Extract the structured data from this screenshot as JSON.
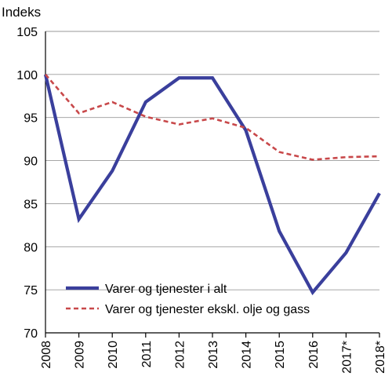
{
  "chart_data": {
    "type": "line",
    "ylabel": "Indeks",
    "ylim": [
      70,
      105
    ],
    "yticks": [
      70,
      75,
      80,
      85,
      90,
      95,
      100,
      105
    ],
    "categories": [
      "2008",
      "2009",
      "2010",
      "2011",
      "2012",
      "2013",
      "2014",
      "2015",
      "2016",
      "2017*",
      "2018*"
    ],
    "grid": true,
    "legend_position": "bottom-center",
    "series": [
      {
        "name": "Varer og tjenester i alt",
        "color": "#3a3f9c",
        "style": "solid",
        "values": [
          100,
          83.2,
          88.8,
          96.8,
          99.6,
          99.6,
          93.5,
          81.8,
          74.7,
          79.3,
          86.2
        ]
      },
      {
        "name": "Varer og tjenester ekskl. olje og gass",
        "color": "#c8484a",
        "style": "dashed",
        "values": [
          100,
          95.5,
          96.8,
          95.1,
          94.2,
          94.9,
          93.8,
          91.0,
          90.1,
          90.4,
          90.5
        ]
      }
    ]
  }
}
